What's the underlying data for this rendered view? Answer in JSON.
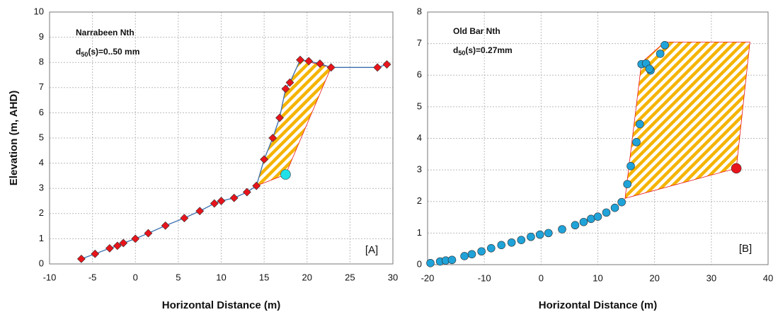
{
  "chart_data": [
    {
      "type": "scatter",
      "x_label": "Horizontal Distance (m)",
      "y_label": "Elevation (m, AHD)",
      "annotation": {
        "site": "Narrabeen  Nth",
        "d": "d",
        "sub": "50",
        "rest": "(s)=0..50 mm"
      },
      "panel_label": "[A]",
      "xlim": [
        -10,
        30
      ],
      "xticks": [
        -10,
        -5,
        0,
        5,
        10,
        15,
        20,
        25,
        30
      ],
      "ylim": [
        0,
        10
      ],
      "yticks": [
        0,
        1,
        2,
        3,
        4,
        5,
        6,
        7,
        8,
        9,
        10
      ],
      "grid": true,
      "series": [
        {
          "marker": "diamond",
          "color": "#e8141b",
          "line_color": "#3a6fb0",
          "x": [
            -6.3,
            -4.7,
            -3,
            -2.1,
            -1.4,
            0,
            1.5,
            3.5,
            5.7,
            7.5,
            9.2,
            10,
            11.5,
            13,
            14.1,
            15,
            16,
            16.8,
            17.5,
            18,
            19.2,
            20.2,
            21.5,
            22.8,
            28.2,
            29.3
          ],
          "values": [
            0.2,
            0.4,
            0.62,
            0.72,
            0.83,
            1.0,
            1.22,
            1.52,
            1.82,
            2.1,
            2.4,
            2.5,
            2.62,
            2.85,
            3.1,
            4.15,
            5.0,
            5.8,
            6.95,
            7.2,
            8.1,
            8.05,
            7.95,
            7.8,
            7.8,
            7.92
          ]
        },
        {
          "marker": "circle",
          "color": "#22e0e8",
          "x": [
            17.5
          ],
          "values": [
            3.55
          ]
        }
      ],
      "shaded_area": {
        "color": "#f5b400",
        "x": [
          14.1,
          15,
          16,
          16.8,
          17.5,
          18,
          19.2,
          22.8,
          17.5
        ],
        "values": [
          3.1,
          4.15,
          5.0,
          5.8,
          6.95,
          7.2,
          8.1,
          7.8,
          3.55
        ]
      }
    },
    {
      "type": "scatter",
      "x_label": "Horizontal Distance (m)",
      "annotation": {
        "site": "Old Bar  Nth",
        "d": "d",
        "sub": "50",
        "rest": "(s)=0.27mm"
      },
      "panel_label": "[B]",
      "xlim": [
        -20,
        40
      ],
      "xticks": [
        -20,
        -10,
        0,
        10,
        20,
        30,
        40
      ],
      "ylim": [
        0,
        8
      ],
      "yticks": [
        0,
        1,
        2,
        3,
        4,
        5,
        6,
        7,
        8
      ],
      "grid": true,
      "series": [
        {
          "marker": "circle",
          "color": "#1fa3d9",
          "x": [
            -19.5,
            -17.8,
            -16.8,
            -15.7,
            -13.5,
            -12.2,
            -10.5,
            -8.8,
            -7,
            -5.2,
            -3.5,
            -1.8,
            -0.2,
            1.3,
            3.7,
            6,
            7.5,
            8.8,
            10,
            11.5,
            13,
            14.2,
            15.2,
            15.8,
            16.8,
            17.4,
            17.7,
            18.5,
            19.3,
            19.1,
            21,
            21.8
          ],
          "values": [
            0.05,
            0.1,
            0.13,
            0.15,
            0.27,
            0.33,
            0.42,
            0.52,
            0.62,
            0.7,
            0.78,
            0.88,
            0.95,
            1.0,
            1.12,
            1.25,
            1.35,
            1.45,
            1.52,
            1.65,
            1.8,
            1.98,
            2.55,
            3.12,
            3.88,
            4.45,
            6.35,
            6.37,
            6.15,
            6.2,
            6.68,
            6.95
          ]
        },
        {
          "marker": "circle",
          "color": "#e8141b",
          "x": [
            34.4
          ],
          "values": [
            3.05
          ]
        }
      ],
      "shaded_area": {
        "color": "#f5b400",
        "x": [
          14.8,
          17.7,
          21.8,
          36.8,
          34.4
        ],
        "values": [
          2.1,
          6.4,
          7.05,
          7.05,
          3.05
        ]
      }
    }
  ]
}
